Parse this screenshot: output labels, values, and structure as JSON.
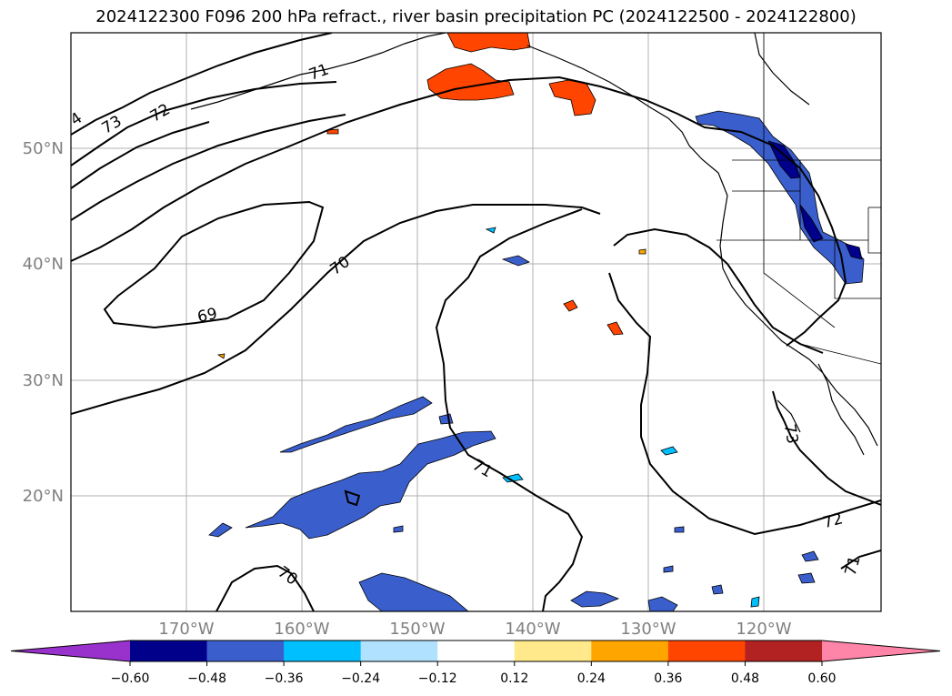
{
  "title": "2024122300 F096 200 hPa refract., river basin precipitation PC (2024122500 - 2024122800)",
  "map": {
    "lat_labels": [
      "50°N",
      "40°N",
      "30°N",
      "20°N"
    ],
    "lon_labels": [
      "170°W",
      "160°W",
      "150°W",
      "140°W",
      "130°W",
      "120°W"
    ],
    "lat_range": [
      10,
      60
    ],
    "lon_range": [
      -180,
      -110
    ],
    "contour_labels": [
      "4",
      "73",
      "72",
      "71",
      "70",
      "69",
      "71",
      "72",
      "71",
      "73",
      "70"
    ]
  },
  "colorbar": {
    "ticks": [
      "−0.60",
      "−0.48",
      "−0.36",
      "−0.24",
      "−0.12",
      "0.12",
      "0.24",
      "0.36",
      "0.48",
      "0.60"
    ],
    "colors": [
      "#9932cc",
      "#00008b",
      "#3a5fcd",
      "#00bfff",
      "#b0e2ff",
      "#ffffff",
      "#ffe98a",
      "#ffa500",
      "#ff4500",
      "#b22222",
      "#ff85a8"
    ]
  }
}
